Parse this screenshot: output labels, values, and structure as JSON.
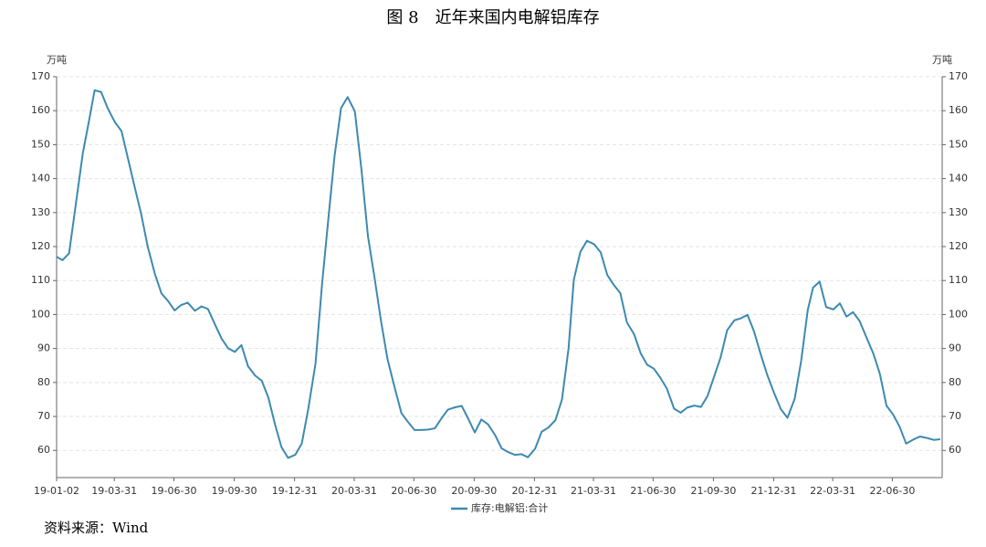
{
  "chart_data": {
    "type": "line",
    "title": "图 8　近年来国内电解铝库存",
    "y_unit": "万吨",
    "y2_unit": "万吨",
    "source": "资料来源：Wind",
    "x": [
      "19-01-02",
      "19-01-11",
      "19-01-21",
      "19-02-01",
      "19-02-11",
      "19-02-21",
      "19-03-01",
      "19-03-11",
      "19-03-21",
      "19-04-01",
      "19-04-11",
      "19-04-21",
      "19-05-01",
      "19-05-11",
      "19-05-21",
      "19-06-01",
      "19-06-11",
      "19-06-21",
      "19-07-01",
      "19-07-11",
      "19-07-21",
      "19-08-01",
      "19-08-11",
      "19-08-21",
      "19-09-01",
      "19-09-11",
      "19-09-21",
      "19-10-01",
      "19-10-11",
      "19-10-21",
      "19-11-01",
      "19-11-11",
      "19-11-21",
      "19-12-01",
      "19-12-11",
      "19-12-21",
      "20-01-01",
      "20-01-11",
      "20-01-21",
      "20-02-01",
      "20-02-11",
      "20-02-21",
      "20-03-01",
      "20-03-11",
      "20-03-21",
      "20-04-01",
      "20-04-11",
      "20-04-21",
      "20-05-01",
      "20-05-11",
      "20-05-21",
      "20-06-01",
      "20-06-11",
      "20-06-21",
      "20-07-01",
      "20-07-11",
      "20-07-21",
      "20-08-01",
      "20-08-11",
      "20-08-21",
      "20-09-01",
      "20-09-11",
      "20-09-21",
      "20-10-01",
      "20-10-11",
      "20-10-21",
      "20-11-01",
      "20-11-11",
      "20-11-21",
      "20-12-01",
      "20-12-11",
      "20-12-21",
      "21-01-01",
      "21-01-11",
      "21-01-21",
      "21-02-01",
      "21-02-11",
      "21-02-21",
      "21-03-01",
      "21-03-11",
      "21-03-21",
      "21-04-01",
      "21-04-11",
      "21-04-21",
      "21-05-01",
      "21-05-11",
      "21-05-21",
      "21-06-01",
      "21-06-11",
      "21-06-21",
      "21-07-01",
      "21-07-11",
      "21-07-21",
      "21-08-01",
      "21-08-11",
      "21-08-21",
      "21-09-01",
      "21-09-11",
      "21-09-21",
      "21-10-01",
      "21-10-11",
      "21-10-21",
      "21-11-01",
      "21-11-11",
      "21-11-21",
      "21-12-01",
      "21-12-11",
      "21-12-21",
      "22-01-01",
      "22-01-11",
      "22-01-21",
      "22-02-01",
      "22-02-11",
      "22-02-21",
      "22-03-01",
      "22-03-11",
      "22-03-21",
      "22-04-01",
      "22-04-11",
      "22-04-21",
      "22-05-01",
      "22-05-11",
      "22-05-21",
      "22-06-01",
      "22-06-11",
      "22-06-21",
      "22-07-01",
      "22-07-11",
      "22-07-21",
      "22-08-01",
      "22-08-11",
      "22-08-21",
      "22-09-01",
      "22-09-11"
    ],
    "series": [
      {
        "name": "库存:电解铝:合计",
        "color": "#3d8ab0",
        "values": [
          117,
          116,
          118,
          133.4,
          147.5,
          157.6,
          166,
          165.5,
          160.7,
          156.6,
          154,
          145.8,
          137.6,
          129.6,
          120,
          111.9,
          106.2,
          104,
          101.2,
          102.8,
          103.5,
          101.1,
          102.4,
          101.6,
          96.9,
          92.8,
          90,
          89,
          91,
          84.8,
          82,
          80.5,
          75.6,
          67.8,
          61,
          57.8,
          58.7,
          62,
          72.3,
          85.6,
          109,
          129,
          146.6,
          160.8,
          164,
          159.8,
          142.8,
          123,
          110.9,
          98,
          86.7,
          78.3,
          71,
          68.4,
          66,
          66,
          66.1,
          66.5,
          69.4,
          72,
          72.7,
          73.1,
          69.3,
          65.3,
          69.1,
          67.7,
          64.5,
          60.6,
          59.5,
          58.7,
          58.9,
          58,
          60.5,
          65.5,
          66.7,
          68.9,
          75,
          90,
          110.2,
          118.4,
          121.7,
          120.7,
          118.3,
          111.7,
          108.7,
          106.3,
          97.7,
          94.2,
          88.6,
          85.2,
          84.1,
          81.4,
          78.2,
          72.3,
          71.1,
          72.6,
          73.2,
          72.8,
          76,
          81.7,
          87.4,
          95.4,
          98.3,
          98.9,
          99.9,
          95,
          88.4,
          82.3,
          76.7,
          72.1,
          69.6,
          75.2,
          86.5,
          101.4,
          107.9,
          109.7,
          102.2,
          101.5,
          103.3,
          99.4,
          100.7,
          98.1,
          93.5,
          88.5,
          82.5,
          73.2,
          70.6,
          67,
          62,
          63.2,
          64.1,
          63.7,
          63.1,
          63.3
        ]
      }
    ],
    "xlim": [
      "19-01-02",
      "22-09-14"
    ],
    "xticks": [
      "19-01-02",
      "19-03-31",
      "19-06-30",
      "19-09-30",
      "19-12-31",
      "20-03-31",
      "20-06-30",
      "20-09-30",
      "20-12-31",
      "21-03-31",
      "21-06-30",
      "21-09-30",
      "21-12-31",
      "22-03-31",
      "22-06-30"
    ],
    "ylim": [
      52,
      170
    ],
    "yticks": [
      60,
      70,
      80,
      90,
      100,
      110,
      120,
      130,
      140,
      150,
      160,
      170
    ],
    "y2lim": [
      52,
      170
    ],
    "y2ticks": [
      60,
      70,
      80,
      90,
      100,
      110,
      120,
      130,
      140,
      150,
      160,
      170
    ],
    "grid": true
  }
}
